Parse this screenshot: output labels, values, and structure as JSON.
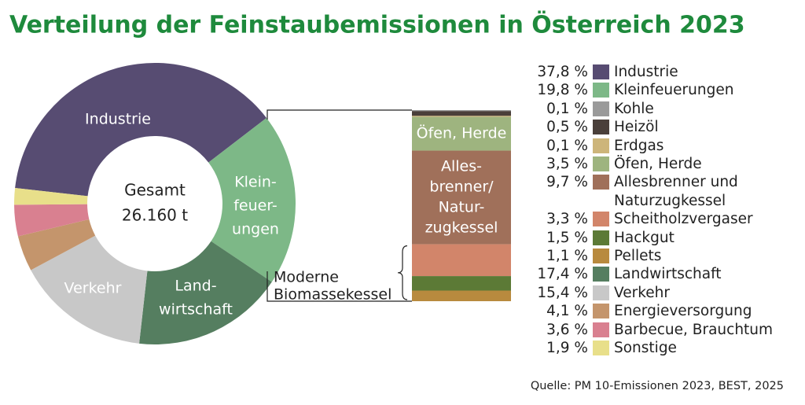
{
  "chart_data": {
    "type": "donut",
    "title": "Verteilung der Feinstaubemissionen in Österreich 2023",
    "center_label": [
      "Gesamt",
      "26.160 t"
    ],
    "categories": [
      "Industrie",
      "Kleinfeuerungen",
      "Landwirtschaft",
      "Verkehr",
      "Energieversorgung",
      "Barbecue, Brauchtum",
      "Sonstige"
    ],
    "values": [
      37.8,
      19.8,
      17.4,
      15.4,
      4.1,
      3.6,
      1.9
    ],
    "value_labels": [
      "37,8 %",
      "19,8 %",
      "17,4 %",
      "15,4 %",
      "4,1 %",
      "3,6 %",
      "1,9 %"
    ],
    "colors": [
      "#574c72",
      "#7db887",
      "#557e60",
      "#c8c8c8",
      "#c4956c",
      "#d98090",
      "#e8df8a"
    ],
    "slice_labels": [
      [
        "Industrie"
      ],
      [
        "Klein-",
        "feuer-",
        "ungen"
      ],
      [
        "Land-",
        "wirtschaft"
      ],
      [
        "Verkehr"
      ],
      null,
      null,
      null
    ],
    "breakdown": {
      "categories": [
        "Kohle",
        "Heizöl",
        "Erdgas",
        "Öfen, Herde",
        "Allesbrenner und Naturzugkessel",
        "Scheitholzvergaser",
        "Hackgut",
        "Pellets"
      ],
      "values": [
        0.1,
        0.5,
        0.1,
        3.5,
        9.7,
        3.3,
        1.5,
        1.1
      ],
      "value_labels": [
        "0,1 %",
        "0,5 %",
        "0,1 %",
        "3,5 %",
        "9,7 %",
        "3,3 %",
        "1,5 %",
        "1,1 %"
      ],
      "colors": [
        "#9a9a9a",
        "#4a3f3a",
        "#cdb57a",
        "#9eb47f",
        "#a0705a",
        "#d2856a",
        "#5c7a36",
        "#b88a3e"
      ],
      "segment_labels": [
        null,
        null,
        null,
        [
          "Öfen, Herde"
        ],
        [
          "Alles-",
          "brenner/",
          "Natur-",
          "zugkessel"
        ],
        null,
        null,
        null
      ],
      "bracket_label": [
        "Moderne",
        "Biomassekessel"
      ]
    },
    "source": "Quelle: PM 10-Emissionen 2023, BEST, 2025"
  }
}
